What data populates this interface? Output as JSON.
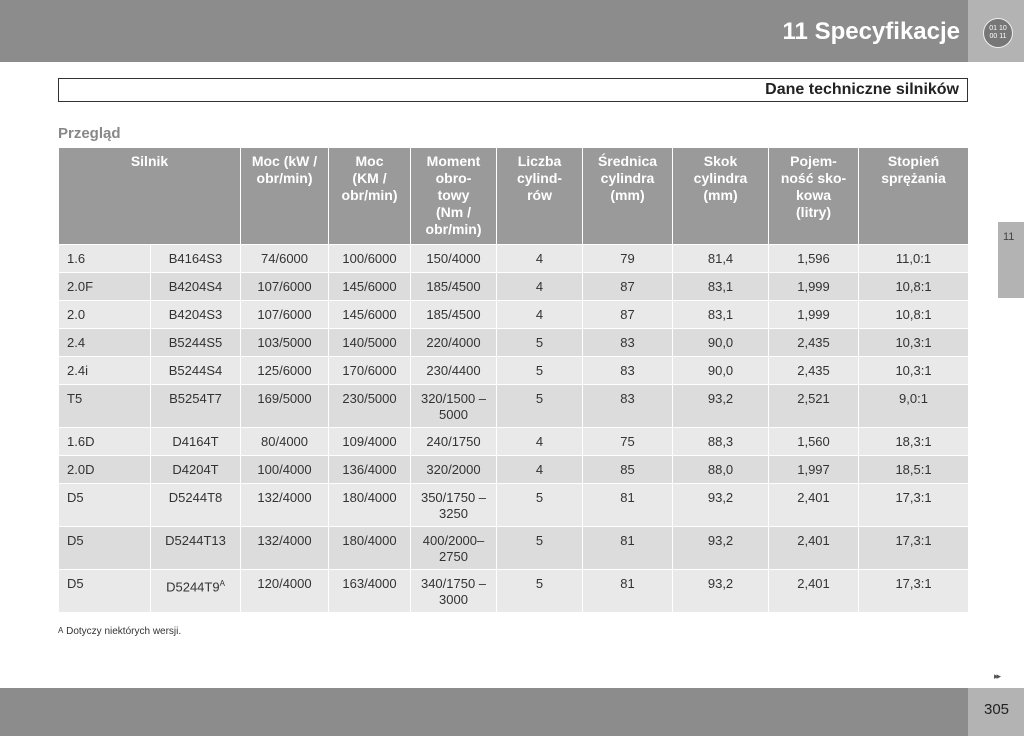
{
  "header": {
    "title": "11 Specyfikacje",
    "icon_text": [
      "01 10",
      "00 11"
    ]
  },
  "section": {
    "title": "Dane techniczne silników",
    "subtitle": "Przegląd"
  },
  "side_tab": "11",
  "table": {
    "columns": [
      "Silnik",
      "Moc (kW /\nobr/min)",
      "Moc\n(KM /\nobr/min)",
      "Moment\nobro-\ntowy\n(Nm /\nobr/min)",
      "Liczba\ncylind-\nrów",
      "Średnica\ncylindra\n(mm)",
      "Skok\ncylindra\n(mm)",
      "Pojem-\nność sko-\nkowa\n(litry)",
      "Stopień\nsprężania"
    ],
    "rows": [
      [
        "1.6",
        "B4164S3",
        "74/6000",
        "100/6000",
        "150/4000",
        "4",
        "79",
        "81,4",
        "1,596",
        "11,0:1"
      ],
      [
        "2.0F",
        "B4204S4",
        "107/6000",
        "145/6000",
        "185/4500",
        "4",
        "87",
        "83,1",
        "1,999",
        "10,8:1"
      ],
      [
        "2.0",
        "B4204S3",
        "107/6000",
        "145/6000",
        "185/4500",
        "4",
        "87",
        "83,1",
        "1,999",
        "10,8:1"
      ],
      [
        "2.4",
        "B5244S5",
        "103/5000",
        "140/5000",
        "220/4000",
        "5",
        "83",
        "90,0",
        "2,435",
        "10,3:1"
      ],
      [
        "2.4i",
        "B5244S4",
        "125/6000",
        "170/6000",
        "230/4400",
        "5",
        "83",
        "90,0",
        "2,435",
        "10,3:1"
      ],
      [
        "T5",
        "B5254T7",
        "169/5000",
        "230/5000",
        "320/1500 –\n5000",
        "5",
        "83",
        "93,2",
        "2,521",
        "9,0:1"
      ],
      [
        "1.6D",
        "D4164T",
        "80/4000",
        "109/4000",
        "240/1750",
        "4",
        "75",
        "88,3",
        "1,560",
        "18,3:1"
      ],
      [
        "2.0D",
        "D4204T",
        "100/4000",
        "136/4000",
        "320/2000",
        "4",
        "85",
        "88,0",
        "1,997",
        "18,5:1"
      ],
      [
        "D5",
        "D5244T8",
        "132/4000",
        "180/4000",
        "350/1750 –\n3250",
        "5",
        "81",
        "93,2",
        "2,401",
        "17,3:1"
      ],
      [
        "D5",
        "D5244T13",
        "132/4000",
        "180/4000",
        "400/2000–\n2750",
        "5",
        "81",
        "93,2",
        "2,401",
        "17,3:1"
      ],
      [
        "D5",
        {
          "text": "D5244T9",
          "sup": "A"
        },
        "120/4000",
        "163/4000",
        "340/1750 –\n3000",
        "5",
        "81",
        "93,2",
        "2,401",
        "17,3:1"
      ]
    ]
  },
  "footnote": {
    "mark": "A",
    "text": "Dotyczy niektórych wersji."
  },
  "footer": {
    "page": "305"
  }
}
